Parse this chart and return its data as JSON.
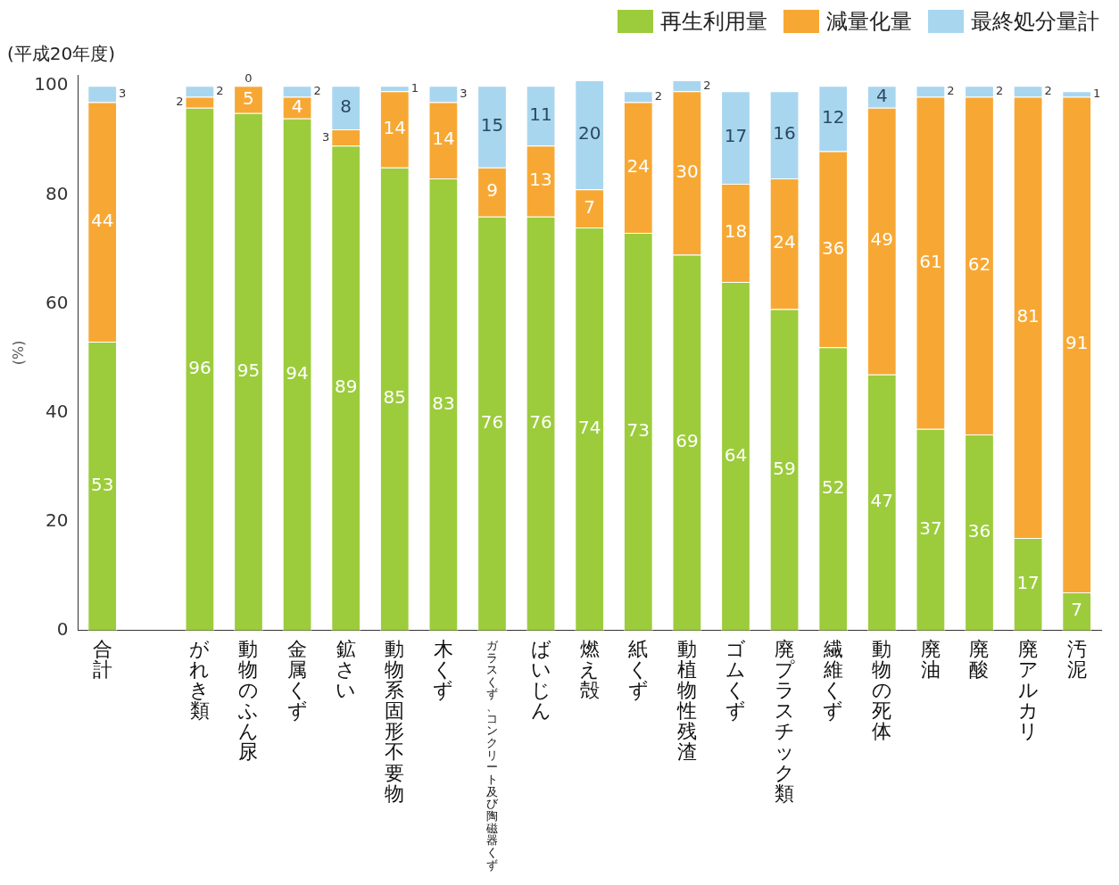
{
  "chart_data": {
    "type": "bar",
    "title": "(平成20年度)",
    "ylabel": "(%)",
    "stacked": true,
    "data_labels": true,
    "legend": "top right",
    "grid": false,
    "categories": [
      "合計",
      null,
      "がれき類",
      "動物のふん尿",
      "金属くず",
      "鉱さい",
      "動物系固形不要物",
      "木くず",
      "ガラスくず、コンクリート及び陶磁器くず",
      "ばいじん",
      "燃え殻",
      "紙くず",
      "動植物性残渣",
      "ゴムくず",
      "廃プラスチック類",
      "繊維くず",
      "動物の死体",
      "廃油",
      "廃酸",
      "廃アルカリ",
      "汚泥"
    ],
    "ylim": [
      0,
      102
    ],
    "yticks": [
      0,
      20,
      40,
      60,
      80,
      100
    ],
    "series": [
      {
        "name": "再生利用量",
        "color": "#9ccc3c",
        "values": [
          53,
          null,
          96,
          95,
          94,
          89,
          85,
          83,
          76,
          76,
          74,
          73,
          69,
          64,
          59,
          52,
          47,
          37,
          36,
          17,
          7
        ]
      },
      {
        "name": "減量化量",
        "color": "#f7a834",
        "values": [
          44,
          null,
          2,
          5,
          4,
          3,
          14,
          14,
          9,
          13,
          7,
          24,
          30,
          18,
          24,
          36,
          49,
          61,
          62,
          81,
          91
        ]
      },
      {
        "name": "最終処分量計",
        "color": "#a9d6ef",
        "values": [
          3,
          null,
          2,
          0,
          2,
          8,
          1,
          3,
          15,
          11,
          20,
          2,
          2,
          17,
          16,
          12,
          4,
          2,
          2,
          2,
          1
        ]
      }
    ]
  }
}
